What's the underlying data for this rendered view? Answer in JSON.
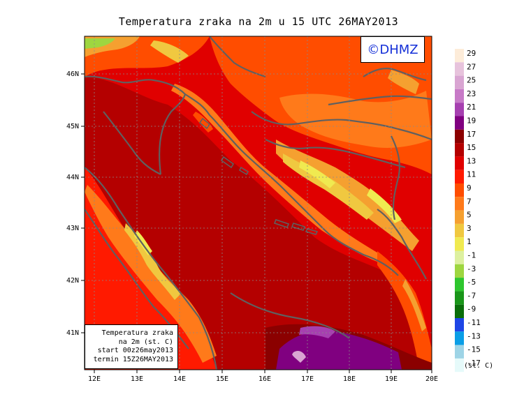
{
  "title": "Temperatura zraka na 2m u 15 UTC 26MAY2013",
  "copyright": "©DHMZ",
  "info_box": {
    "lines": [
      "Temperatura zraka",
      "na 2m (st. C)",
      "start 00z26may2013",
      "termin 15Z26MAY2013"
    ]
  },
  "latitude_labels": [
    "46N",
    "45N",
    "44N",
    "43N",
    "42N",
    "41N"
  ],
  "longitude_labels": [
    "12E",
    "13E",
    "14E",
    "15E",
    "16E",
    "17E",
    "18E",
    "19E",
    "20E"
  ],
  "legend": {
    "unit": "(st. C)",
    "labels": [
      "29",
      "27",
      "25",
      "23",
      "21",
      "19",
      "17",
      "15",
      "13",
      "11",
      "9",
      "7",
      "5",
      "3",
      "1",
      "-1",
      "-3",
      "-5",
      "-7",
      "-9",
      "-11",
      "-13",
      "-15",
      "-17"
    ],
    "colors": [
      "#fdecd9",
      "#e7c3dc",
      "#d9a5d2",
      "#c77ac7",
      "#a640b0",
      "#800080",
      "#8b0000",
      "#b40000",
      "#e00000",
      "#ff1a00",
      "#ff4d00",
      "#ff7a1a",
      "#f5a030",
      "#f0c840",
      "#f0ea50",
      "#ddf0a0",
      "#9ed640",
      "#2ec62e",
      "#1a961a",
      "#0a6e0a",
      "#1e46e6",
      "#0a9ee6",
      "#9ed4e6",
      "#e6fafa"
    ]
  },
  "colors": {
    "sea_dark_red": "#b40000",
    "land_red": "#e00000",
    "highland_orange": "#ff7a1a",
    "mountain_yellow": "#f0ea50",
    "purple_south": "#800080",
    "coastline": "#606060"
  }
}
